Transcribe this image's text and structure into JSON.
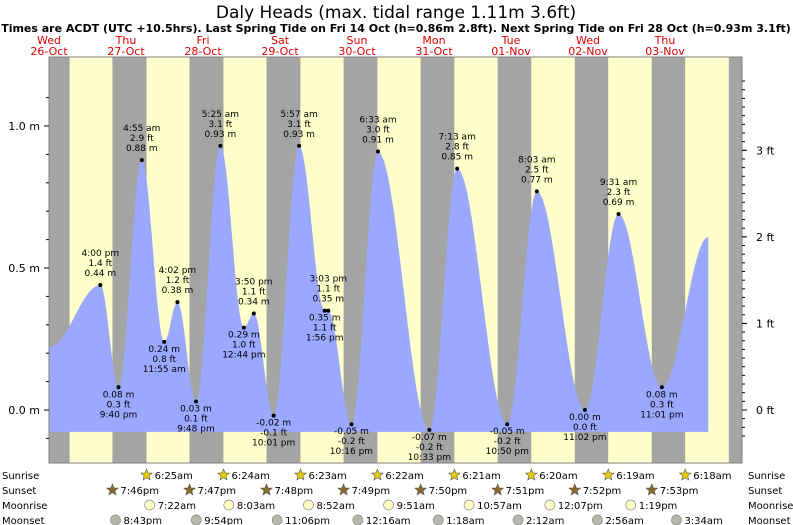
{
  "chart_data": {
    "type": "area",
    "title": "Daly Heads (max. tidal range 1.11m 3.6ft)",
    "subtitle": "Times are ACDT (UTC +10.5hrs). Last Spring Tide on Fri 14 Oct (h=0.86m 2.8ft). Next Spring Tide on Fri 28 Oct (h=0.93m 3.1ft)",
    "days": [
      {
        "dow": "Wed",
        "date": "26-Oct"
      },
      {
        "dow": "Thu",
        "date": "27-Oct"
      },
      {
        "dow": "Fri",
        "date": "28-Oct"
      },
      {
        "dow": "Sat",
        "date": "29-Oct"
      },
      {
        "dow": "Sun",
        "date": "30-Oct"
      },
      {
        "dow": "Mon",
        "date": "31-Oct"
      },
      {
        "dow": "Tue",
        "date": "01-Nov"
      },
      {
        "dow": "Wed",
        "date": "02-Nov"
      },
      {
        "dow": "Thu",
        "date": "03-Nov"
      }
    ],
    "y_left_ticks": [
      {
        "v": 0.0,
        "label": "0.0 m"
      },
      {
        "v": 0.5,
        "label": "0.5 m"
      },
      {
        "v": 1.0,
        "label": "1.0 m"
      }
    ],
    "y_right_ticks": [
      {
        "v": 0.0,
        "label": "0 ft"
      },
      {
        "v": 0.3048,
        "label": "1 ft"
      },
      {
        "v": 0.6096,
        "label": "2 ft"
      },
      {
        "v": 0.9144,
        "label": "3 ft"
      }
    ],
    "ylim": [
      -0.13,
      1.2
    ],
    "xlim_hours": [
      0,
      216
    ],
    "night_bands": [
      [
        -10.2,
        6.42
      ],
      [
        19.77,
        30.4
      ],
      [
        43.78,
        54.38
      ],
      [
        67.8,
        78.37
      ],
      [
        91.82,
        102.35
      ],
      [
        115.83,
        126.33
      ],
      [
        139.85,
        150.32
      ],
      [
        163.87,
        174.3
      ],
      [
        187.88,
        198.28
      ],
      [
        211.9,
        222.3
      ]
    ],
    "extremes": [
      {
        "t": 16.0,
        "h": 0.44,
        "time": "4:00 pm",
        "ft": "1.4 ft",
        "m": "0.44 m",
        "type": "high"
      },
      {
        "t": 21.67,
        "h": 0.08,
        "time": "9:40 pm",
        "ft": "0.3 ft",
        "m": "0.08 m",
        "type": "low"
      },
      {
        "t": 28.92,
        "h": 0.88,
        "time": "4:55 am",
        "ft": "2.9 ft",
        "m": "0.88 m",
        "type": "high"
      },
      {
        "t": 35.92,
        "h": 0.24,
        "time": "11:55 am",
        "ft": "0.8 ft",
        "m": "0.24 m",
        "type": "low"
      },
      {
        "t": 40.03,
        "h": 0.38,
        "time": "4:02 pm",
        "ft": "1.2 ft",
        "m": "0.38 m",
        "type": "high"
      },
      {
        "t": 45.8,
        "h": 0.03,
        "time": "9:48 pm",
        "ft": "0.1 ft",
        "m": "0.03 m",
        "type": "low"
      },
      {
        "t": 53.42,
        "h": 0.93,
        "time": "5:25 am",
        "ft": "3.1 ft",
        "m": "0.93 m",
        "type": "high"
      },
      {
        "t": 60.73,
        "h": 0.29,
        "time": "12:44 pm",
        "ft": "1.0 ft",
        "m": "0.29 m",
        "type": "low"
      },
      {
        "t": 63.83,
        "h": 0.34,
        "time": "3:50 pm",
        "ft": "1.1 ft",
        "m": "0.34 m",
        "type": "high"
      },
      {
        "t": 70.02,
        "h": -0.02,
        "time": "10:01 pm",
        "ft": "-0.1 ft",
        "m": "-0.02 m",
        "type": "low"
      },
      {
        "t": 77.95,
        "h": 0.93,
        "time": "5:57 am",
        "ft": "3.1 ft",
        "m": "0.93 m",
        "type": "high"
      },
      {
        "t": 85.93,
        "h": 0.35,
        "time": "1:56 pm",
        "ft": "1.1 ft",
        "m": "0.35 m",
        "type": "low"
      },
      {
        "t": 87.05,
        "h": 0.35,
        "time": "3:03 pm",
        "ft": "1.1 ft",
        "m": "0.35 m",
        "type": "high"
      },
      {
        "t": 94.27,
        "h": -0.05,
        "time": "10:16 pm",
        "ft": "-0.2 ft",
        "m": "-0.05 m",
        "type": "low"
      },
      {
        "t": 102.55,
        "h": 0.91,
        "time": "6:33 am",
        "ft": "3.0 ft",
        "m": "0.91 m",
        "type": "high"
      },
      {
        "t": 118.55,
        "h": -0.07,
        "time": "10:33 pm",
        "ft": "-0.2 ft",
        "m": "-0.07 m",
        "type": "low"
      },
      {
        "t": 127.22,
        "h": 0.85,
        "time": "7:13 am",
        "ft": "2.8 ft",
        "m": "0.85 m",
        "type": "high"
      },
      {
        "t": 142.83,
        "h": -0.05,
        "time": "10:50 pm",
        "ft": "-0.2 ft",
        "m": "-0.05 m",
        "type": "low"
      },
      {
        "t": 152.05,
        "h": 0.77,
        "time": "8:03 am",
        "ft": "2.5 ft",
        "m": "0.77 m",
        "type": "high"
      },
      {
        "t": 167.03,
        "h": 0.0,
        "time": "11:02 pm",
        "ft": "0.0 ft",
        "m": "0.00 m",
        "type": "low"
      },
      {
        "t": 177.52,
        "h": 0.69,
        "time": "9:31 am",
        "ft": "2.3 ft",
        "m": "0.69 m",
        "type": "high"
      },
      {
        "t": 191.02,
        "h": 0.08,
        "time": "11:01 pm",
        "ft": "0.3 ft",
        "m": "0.08 m",
        "type": "low"
      }
    ],
    "series_start": {
      "t": 0.0,
      "h": 0.22
    },
    "series_end": {
      "t": 205.5,
      "h": 0.61
    },
    "rows": [
      {
        "name": "Sunrise",
        "kind": "sunrise",
        "items": [
          {
            "t": 30.42,
            "label": "6:25am"
          },
          {
            "t": 54.4,
            "label": "6:24am"
          },
          {
            "t": 78.38,
            "label": "6:23am"
          },
          {
            "t": 102.37,
            "label": "6:22am"
          },
          {
            "t": 126.35,
            "label": "6:21am"
          },
          {
            "t": 150.33,
            "label": "6:20am"
          },
          {
            "t": 174.32,
            "label": "6:19am"
          },
          {
            "t": 198.3,
            "label": "6:18am"
          }
        ]
      },
      {
        "name": "Sunset",
        "kind": "sunset",
        "items": [
          {
            "t": 19.77,
            "label": "7:46pm"
          },
          {
            "t": 43.78,
            "label": "7:47pm"
          },
          {
            "t": 67.8,
            "label": "7:48pm"
          },
          {
            "t": 91.82,
            "label": "7:49pm"
          },
          {
            "t": 115.83,
            "label": "7:50pm"
          },
          {
            "t": 139.85,
            "label": "7:51pm"
          },
          {
            "t": 163.87,
            "label": "7:52pm"
          },
          {
            "t": 187.88,
            "label": "7:53pm"
          }
        ]
      },
      {
        "name": "Moonrise",
        "kind": "moonrise",
        "items": [
          {
            "t": 31.37,
            "label": "7:22am"
          },
          {
            "t": 56.05,
            "label": "8:03am"
          },
          {
            "t": 80.87,
            "label": "8:52am"
          },
          {
            "t": 105.85,
            "label": "9:51am"
          },
          {
            "t": 130.95,
            "label": "10:57am"
          },
          {
            "t": 156.12,
            "label": "12:07pm"
          },
          {
            "t": 181.32,
            "label": "1:19pm"
          }
        ]
      },
      {
        "name": "Moonset",
        "kind": "moonset",
        "items": [
          {
            "t": 20.72,
            "label": "8:43pm"
          },
          {
            "t": 45.9,
            "label": "9:54pm"
          },
          {
            "t": 71.1,
            "label": "11:06pm"
          },
          {
            "t": 96.27,
            "label": "12:16am"
          },
          {
            "t": 121.3,
            "label": "1:18am"
          },
          {
            "t": 146.2,
            "label": "2:12am"
          },
          {
            "t": 170.93,
            "label": "2:56am"
          },
          {
            "t": 195.57,
            "label": "3:34am"
          }
        ]
      }
    ],
    "colors": {
      "day": "#ffffcc",
      "night": "#a4a4a4",
      "tide": "#9aa8ff",
      "frame": "#808080",
      "day_label": "#e00000",
      "sun": "#e8d000",
      "sunset": "#8a6a2a",
      "moonrise": "#ffffc8",
      "moonset": "#b8b8a8"
    }
  }
}
